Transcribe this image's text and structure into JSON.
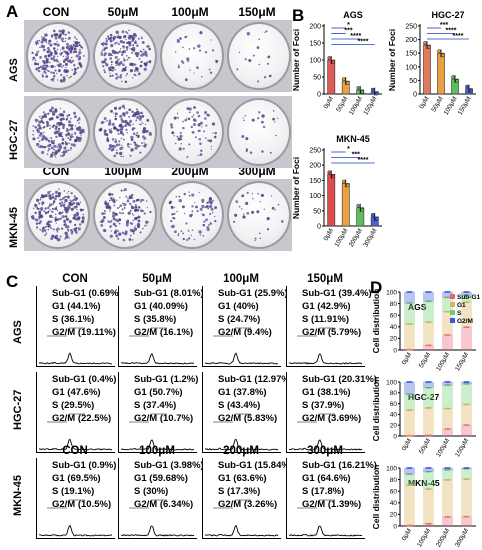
{
  "panel_labels": {
    "a": "A",
    "b": "B",
    "c": "C",
    "d": "D"
  },
  "panel_a": {
    "top_concentrations": [
      "CON",
      "50μM",
      "100μM",
      "150μM"
    ],
    "bottom_concentrations": [
      "CON",
      "100μM",
      "200μM",
      "300μM"
    ],
    "rows": [
      "AGS",
      "HGC-27",
      "MKN-45"
    ],
    "colony_density": [
      [
        0.9,
        0.75,
        0.12,
        0.06
      ],
      [
        0.85,
        0.6,
        0.25,
        0.08
      ],
      [
        0.9,
        0.55,
        0.3,
        0.12
      ]
    ]
  },
  "panel_c": {
    "rows": [
      {
        "cell_line": "AGS",
        "columns": [
          {
            "conc": "CON",
            "subg1": "Sub-G1 (0.69%)",
            "g1": "G1 (44.1%)",
            "s": "S (36.1%)",
            "g2m": "G2/M (19.11%)"
          },
          {
            "conc": "50μM",
            "subg1": "Sub-G1 (8.01%)",
            "g1": "G1 (40.09%)",
            "s": "S (35.8%)",
            "g2m": "G2/M (16.1%)"
          },
          {
            "conc": "100μM",
            "subg1": "Sub-G1 (25.9%)",
            "g1": "G1 (40%)",
            "s": "S (24.7%)",
            "g2m": "G2/M (9.4%)"
          },
          {
            "conc": "150μM",
            "subg1": "Sub-G1 (39.4%)",
            "g1": "G1 (42.9%)",
            "s": "S (11.91%)",
            "g2m": "G2/M (5.79%)"
          }
        ]
      },
      {
        "cell_line": "HGC-27",
        "columns": [
          {
            "conc": "",
            "subg1": "Sub-G1 (0.4%)",
            "g1": "G1 (47.6%)",
            "s": "S (29.5%)",
            "g2m": "G2/M (22.5%)"
          },
          {
            "conc": "",
            "subg1": "Sub-G1 (1.2%)",
            "g1": "G1 (50.7%)",
            "s": "S (37.4%)",
            "g2m": "G2/M (10.7%)"
          },
          {
            "conc": "",
            "subg1": "Sub-G1 (12.97%)",
            "g1": "G1 (37.8%)",
            "s": "S (43.4%)",
            "g2m": "G2/M (5.83%)"
          },
          {
            "conc": "",
            "subg1": "Sub-G1 (20.31%)",
            "g1": "G1 (38.1%)",
            "s": "S (37.9%)",
            "g2m": "G2/M (3.69%)"
          }
        ]
      },
      {
        "cell_line": "MKN-45",
        "columns": [
          {
            "conc": "CON",
            "subg1": "Sub-G1 (0.9%)",
            "g1": "G1 (69.5%)",
            "s": "S (19.1%)",
            "g2m": "G2/M (10.5%)"
          },
          {
            "conc": "100μM",
            "subg1": "Sub-G1 (3.98%)",
            "g1": "G1 (59.68%)",
            "s": "S (30%)",
            "g2m": "G2/M (6.34%)"
          },
          {
            "conc": "200μM",
            "subg1": "Sub-G1 (15.84%)",
            "g1": "G1 (63.6%)",
            "s": "S (17.3%)",
            "g2m": "G2/M (3.26%)"
          },
          {
            "conc": "300μM",
            "subg1": "Sub-G1 (16.21%)",
            "g1": "G1 (64.6%)",
            "s": "S (17.8%)",
            "g2m": "G2/M (1.39%)"
          }
        ]
      }
    ]
  },
  "colors": {
    "subg1": "#e8627a",
    "g1": "#d9b25a",
    "s": "#6fcf6f",
    "g2m": "#3b56d9",
    "bar_ags": "#e05a5a",
    "bar_hgc": "#e07a5a",
    "bar_mkn": "#e04a4a",
    "bar_lvl2": "#e8a040",
    "bar_lvl3": "#5bbf5b",
    "bar_lvl4": "#4a62d6",
    "sig": "#1a3fbf"
  },
  "chart_data": [
    {
      "type": "bar",
      "title": "AGS",
      "ylabel": "Number of Foci",
      "categories": [
        "0μM",
        "50μM",
        "100μM",
        "150μM"
      ],
      "values": [
        100,
        38,
        12,
        7
      ],
      "ylim": [
        0,
        200
      ],
      "yticks": [
        0,
        50,
        100,
        150,
        200
      ],
      "significance": [
        "*",
        "***",
        "****",
        "****"
      ]
    },
    {
      "type": "bar",
      "title": "HGC-27",
      "ylabel": "Number of Foci",
      "categories": [
        "0μM",
        "50μM",
        "100μM",
        "150μM"
      ],
      "values": [
        180,
        150,
        55,
        20
      ],
      "ylim": [
        0,
        250
      ],
      "yticks": [
        0,
        50,
        100,
        150,
        200,
        250
      ],
      "significance": [
        "***",
        "****",
        "****"
      ]
    },
    {
      "type": "bar",
      "title": "MKN-45",
      "ylabel": "Number of Foci",
      "categories": [
        "0μM",
        "100μM",
        "200μM",
        "300μM"
      ],
      "values": [
        170,
        140,
        60,
        30
      ],
      "ylim": [
        0,
        250
      ],
      "yticks": [
        0,
        50,
        100,
        150,
        200,
        250
      ],
      "significance": [
        "*",
        "***",
        "****"
      ]
    },
    {
      "type": "bar",
      "title": "AGS",
      "ylabel": "Cell distribution",
      "categories": [
        "0μM",
        "50μM",
        "100μM",
        "150μM"
      ],
      "ylim": [
        0,
        100
      ],
      "yticks": [
        0,
        20,
        40,
        60,
        80,
        100
      ],
      "legend": [
        "Sub-G1",
        "G1",
        "S",
        "G2/M"
      ],
      "series": [
        {
          "name": "Sub-G1",
          "values": [
            0.69,
            8.01,
            25.9,
            39.4
          ]
        },
        {
          "name": "G1",
          "values": [
            44.1,
            40.09,
            40,
            42.9
          ]
        },
        {
          "name": "S",
          "values": [
            36.1,
            35.8,
            24.7,
            11.91
          ]
        },
        {
          "name": "G2/M",
          "values": [
            19.11,
            16.1,
            9.4,
            5.79
          ]
        }
      ]
    },
    {
      "type": "bar",
      "title": "HGC-27",
      "ylabel": "Cell distribution",
      "categories": [
        "0μM",
        "50μM",
        "100μM",
        "150μM"
      ],
      "ylim": [
        0,
        100
      ],
      "yticks": [
        0,
        20,
        40,
        60,
        80,
        100
      ],
      "series": [
        {
          "name": "Sub-G1",
          "values": [
            0.4,
            1.2,
            12.97,
            20.31
          ]
        },
        {
          "name": "G1",
          "values": [
            47.6,
            50.7,
            37.8,
            38.1
          ]
        },
        {
          "name": "S",
          "values": [
            29.5,
            37.4,
            43.4,
            37.9
          ]
        },
        {
          "name": "G2/M",
          "values": [
            22.5,
            10.7,
            5.83,
            3.69
          ]
        }
      ]
    },
    {
      "type": "bar",
      "title": "MKN-45",
      "ylabel": "Cell distribution",
      "categories": [
        "0μM",
        "100μM",
        "200μM",
        "300μM"
      ],
      "ylim": [
        0,
        100
      ],
      "yticks": [
        0,
        20,
        40,
        60,
        80,
        100
      ],
      "series": [
        {
          "name": "Sub-G1",
          "values": [
            0.9,
            3.98,
            15.84,
            16.21
          ]
        },
        {
          "name": "G1",
          "values": [
            69.5,
            59.68,
            63.6,
            64.6
          ]
        },
        {
          "name": "S",
          "values": [
            19.1,
            30,
            17.3,
            17.8
          ]
        },
        {
          "name": "G2/M",
          "values": [
            10.5,
            6.34,
            3.26,
            1.39
          ]
        }
      ]
    }
  ]
}
